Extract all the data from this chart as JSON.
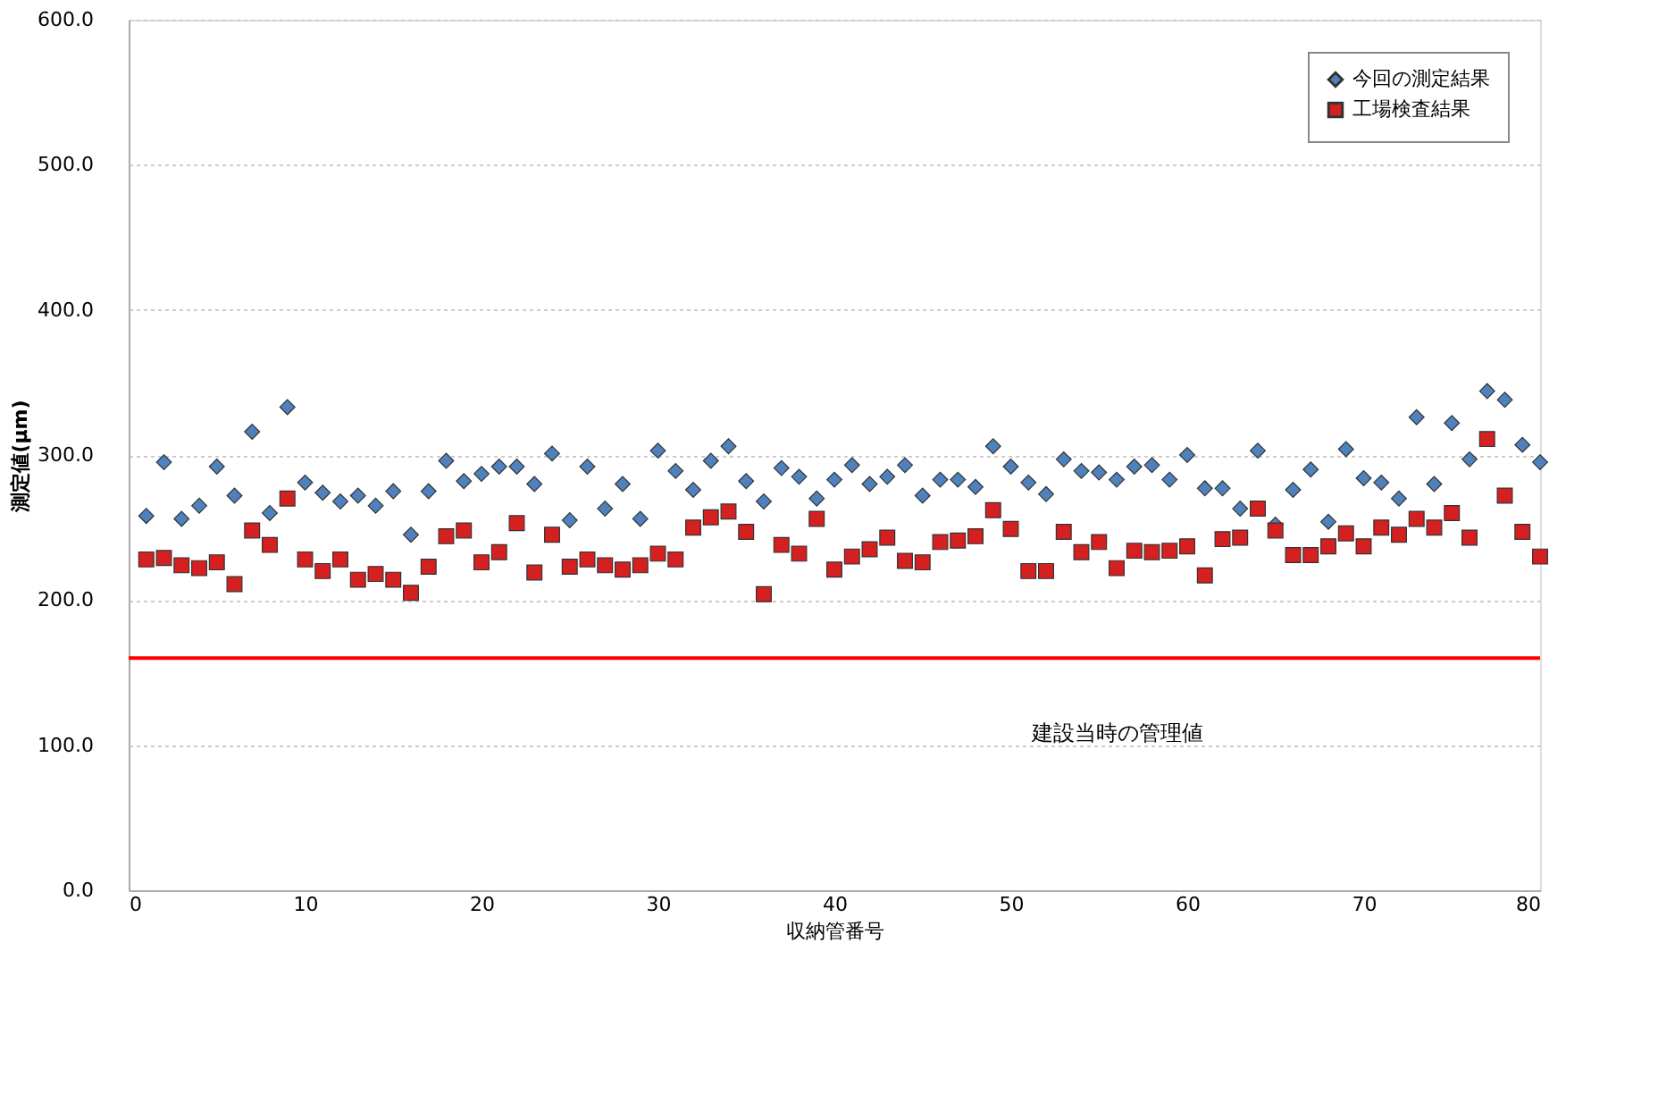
{
  "chart_data": {
    "type": "scatter",
    "xlabel": "収納管番号",
    "ylabel": "測定値(μm)",
    "x": [
      1,
      2,
      3,
      4,
      5,
      6,
      7,
      8,
      9,
      10,
      11,
      12,
      13,
      14,
      15,
      16,
      17,
      18,
      19,
      20,
      21,
      22,
      23,
      24,
      25,
      26,
      27,
      28,
      29,
      30,
      31,
      32,
      33,
      34,
      35,
      36,
      37,
      38,
      39,
      40,
      41,
      42,
      43,
      44,
      45,
      46,
      47,
      48,
      49,
      50,
      51,
      52,
      53,
      54,
      55,
      56,
      57,
      58,
      59,
      60,
      61,
      62,
      63,
      64,
      65,
      66,
      67,
      68,
      69,
      70,
      71,
      72,
      73,
      74,
      75,
      76,
      77,
      78,
      79,
      80
    ],
    "series": [
      {
        "name": "今回の測定結果",
        "color": "#4f81bd",
        "marker": "diamond",
        "values": [
          258,
          295,
          256,
          265,
          292,
          272,
          316,
          260,
          333,
          281,
          274,
          268,
          272,
          265,
          275,
          245,
          275,
          296,
          282,
          287,
          292,
          292,
          280,
          301,
          255,
          292,
          263,
          280,
          256,
          303,
          289,
          276,
          296,
          306,
          282,
          268,
          291,
          285,
          270,
          283,
          293,
          280,
          285,
          293,
          272,
          283,
          283,
          278,
          306,
          292,
          281,
          273,
          297,
          289,
          288,
          283,
          292,
          293,
          283,
          300,
          277,
          277,
          263,
          303,
          252,
          276,
          290,
          254,
          304,
          284,
          281,
          270,
          326,
          280,
          322,
          297,
          344,
          338,
          307,
          295
        ]
      },
      {
        "name": "工場検査結果",
        "color": "#d42020",
        "marker": "square",
        "values": [
          228,
          229,
          224,
          222,
          226,
          211,
          248,
          238,
          270,
          228,
          220,
          228,
          214,
          218,
          214,
          205,
          223,
          244,
          248,
          226,
          233,
          253,
          219,
          245,
          223,
          228,
          224,
          221,
          224,
          232,
          228,
          250,
          257,
          261,
          247,
          204,
          238,
          232,
          256,
          221,
          230,
          235,
          243,
          227,
          226,
          240,
          241,
          244,
          262,
          249,
          220,
          220,
          247,
          233,
          240,
          222,
          234,
          233,
          234,
          237,
          217,
          242,
          243,
          263,
          248,
          231,
          231,
          237,
          246,
          237,
          250,
          245,
          256,
          250,
          260,
          243,
          311,
          272,
          247,
          230
        ]
      }
    ],
    "xlim": [
      0,
      80
    ],
    "xticks": [
      0,
      10,
      20,
      30,
      40,
      50,
      60,
      70,
      80
    ],
    "ylim": [
      0,
      600
    ],
    "yticks": [
      {
        "value": 0,
        "label": "0.0"
      },
      {
        "value": 100,
        "label": "100.0"
      },
      {
        "value": 200,
        "label": "200.0"
      },
      {
        "value": 300,
        "label": "300.0"
      },
      {
        "value": 400,
        "label": "400.0"
      },
      {
        "value": 500,
        "label": "500.0"
      },
      {
        "value": 600,
        "label": "600.0"
      }
    ],
    "ref_lines": [
      {
        "axis": "y",
        "value": 160,
        "label": "建設当時の管理値",
        "color": "#ff0000"
      }
    ],
    "grid": "y",
    "legend": "top right"
  }
}
